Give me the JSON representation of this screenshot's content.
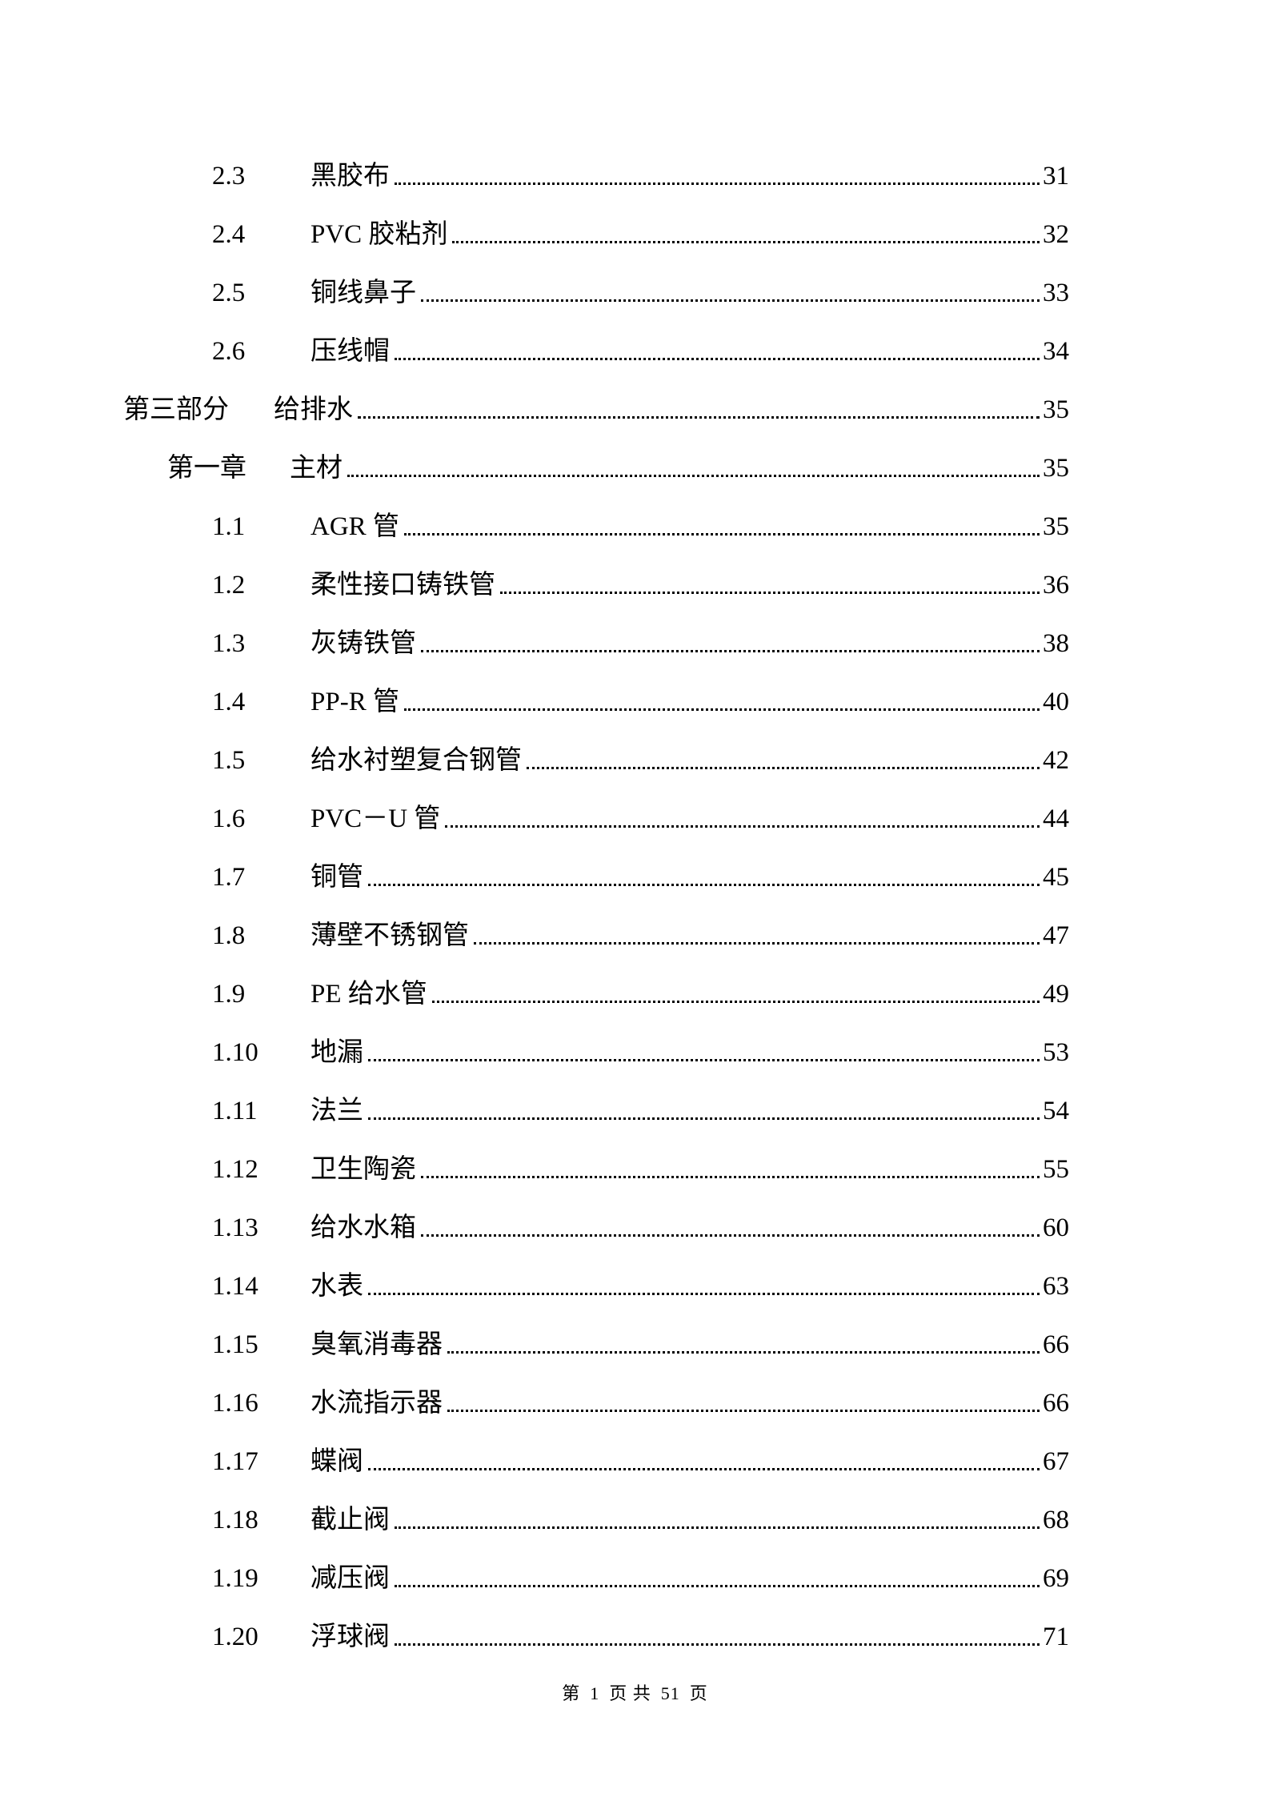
{
  "entries": [
    {
      "level": "section",
      "num": "2.3",
      "title": "黑胶布",
      "page": "31"
    },
    {
      "level": "section",
      "num": "2.4",
      "title": "PVC 胶粘剂",
      "page": "32"
    },
    {
      "level": "section",
      "num": "2.5",
      "title": "铜线鼻子",
      "page": "33"
    },
    {
      "level": "section",
      "num": "2.6",
      "title": "压线帽",
      "page": "34"
    },
    {
      "level": "part",
      "num": "第三部分",
      "title": "给排水",
      "page": "35"
    },
    {
      "level": "chapter",
      "num": "第一章",
      "title": "主材",
      "page": "35"
    },
    {
      "level": "section",
      "num": "1.1",
      "title": "AGR 管",
      "page": "35"
    },
    {
      "level": "section",
      "num": "1.2",
      "title": "柔性接口铸铁管",
      "page": "36"
    },
    {
      "level": "section",
      "num": "1.3",
      "title": "灰铸铁管",
      "page": "38"
    },
    {
      "level": "section",
      "num": "1.4",
      "title": "PP-R 管",
      "page": "40"
    },
    {
      "level": "section",
      "num": "1.5",
      "title": "给水衬塑复合钢管",
      "page": "42"
    },
    {
      "level": "section",
      "num": "1.6",
      "title": "PVC－U 管",
      "page": "44"
    },
    {
      "level": "section",
      "num": "1.7",
      "title": "铜管",
      "page": "45"
    },
    {
      "level": "section",
      "num": "1.8",
      "title": "薄壁不锈钢管",
      "page": "47"
    },
    {
      "level": "section",
      "num": "1.9",
      "title": "PE 给水管",
      "page": "49"
    },
    {
      "level": "section",
      "num": "1.10",
      "title": "地漏",
      "page": "53"
    },
    {
      "level": "section",
      "num": "1.11",
      "title": "法兰",
      "page": "54"
    },
    {
      "level": "section",
      "num": "1.12",
      "title": "卫生陶瓷",
      "page": "55"
    },
    {
      "level": "section",
      "num": "1.13",
      "title": "给水水箱",
      "page": "60"
    },
    {
      "level": "section",
      "num": "1.14",
      "title": "水表",
      "page": "63"
    },
    {
      "level": "section",
      "num": "1.15",
      "title": "臭氧消毒器",
      "page": "66"
    },
    {
      "level": "section",
      "num": "1.16",
      "title": "水流指示器",
      "page": "66"
    },
    {
      "level": "section",
      "num": "1.17",
      "title": "蝶阀",
      "page": "67"
    },
    {
      "level": "section",
      "num": "1.18",
      "title": "截止阀",
      "page": "68"
    },
    {
      "level": "section",
      "num": "1.19",
      "title": "减压阀",
      "page": "69"
    },
    {
      "level": "section",
      "num": "1.20",
      "title": "浮球阀",
      "page": "71"
    }
  ],
  "footer": {
    "prefix": "第",
    "current": "1",
    "mid": "页 共",
    "total": "51",
    "suffix": "页"
  }
}
